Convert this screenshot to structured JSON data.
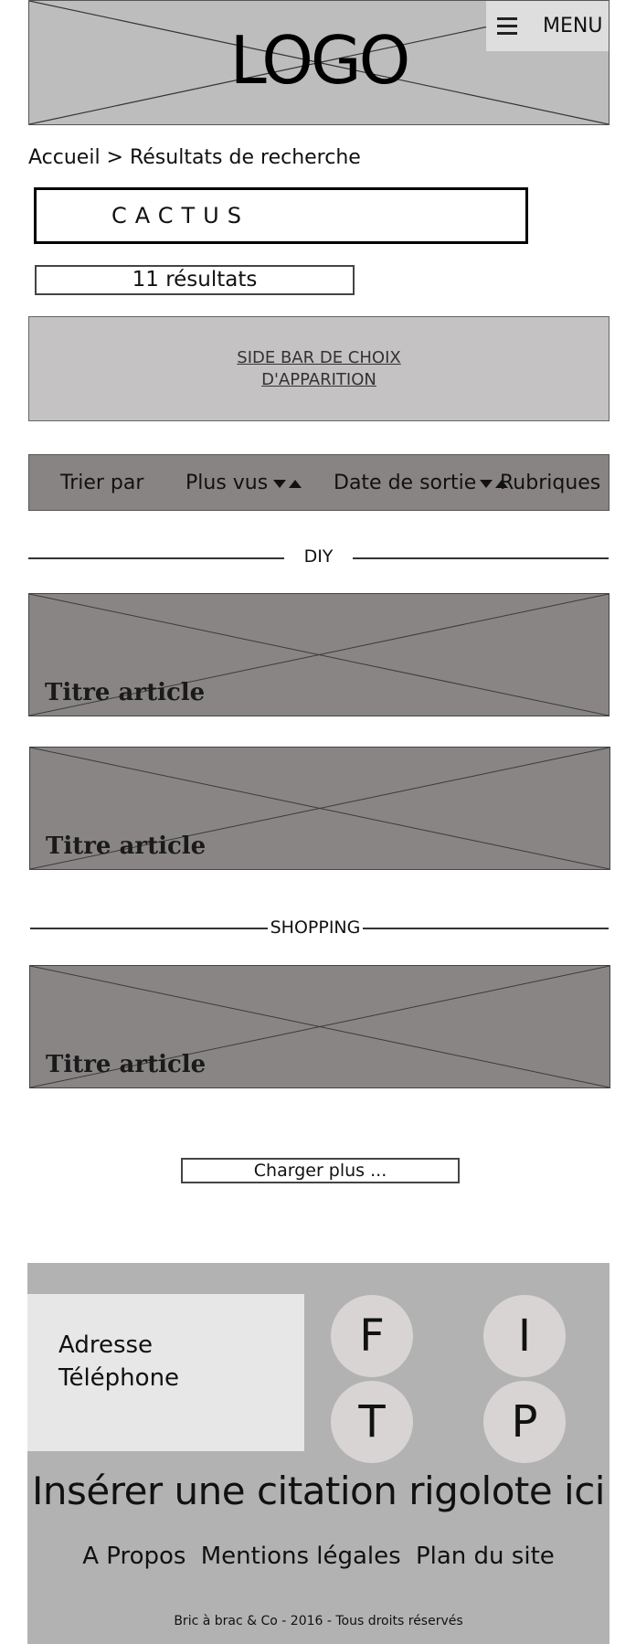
{
  "header": {
    "logo": "LOGO",
    "menu_label": "MENU"
  },
  "breadcrumb": "Accueil > Résultats de recherche",
  "search": {
    "value": "CACTUS"
  },
  "results_count": "11 résultats",
  "sidebar": {
    "line1": "SIDE BAR DE CHOIX",
    "line2": "D'APPARITION"
  },
  "sortbar": {
    "label": "Trier par",
    "options": [
      "Plus vus",
      "Date de sortie",
      "Rubriques"
    ]
  },
  "sections": [
    {
      "title": "DIY",
      "articles": [
        "Titre article",
        "Titre article"
      ]
    },
    {
      "title": "SHOPPING",
      "articles": [
        "Titre article"
      ]
    }
  ],
  "load_more": "Charger plus ...",
  "footer": {
    "address": "Adresse",
    "phone": "Téléphone",
    "social": [
      "F",
      "I",
      "T",
      "P"
    ],
    "quote": "Insérer une citation rigolote ici",
    "links": [
      "A Propos",
      "Mentions légales",
      "Plan du site"
    ],
    "copyright": "Bric à brac & Co  - 2016 - Tous droits réservés"
  },
  "colors": {
    "header_bg": "#bdbdbd",
    "article_bg": "#898585",
    "sidebar_bg": "#c4c2c3",
    "footer_bg": "#b2b2b2"
  }
}
